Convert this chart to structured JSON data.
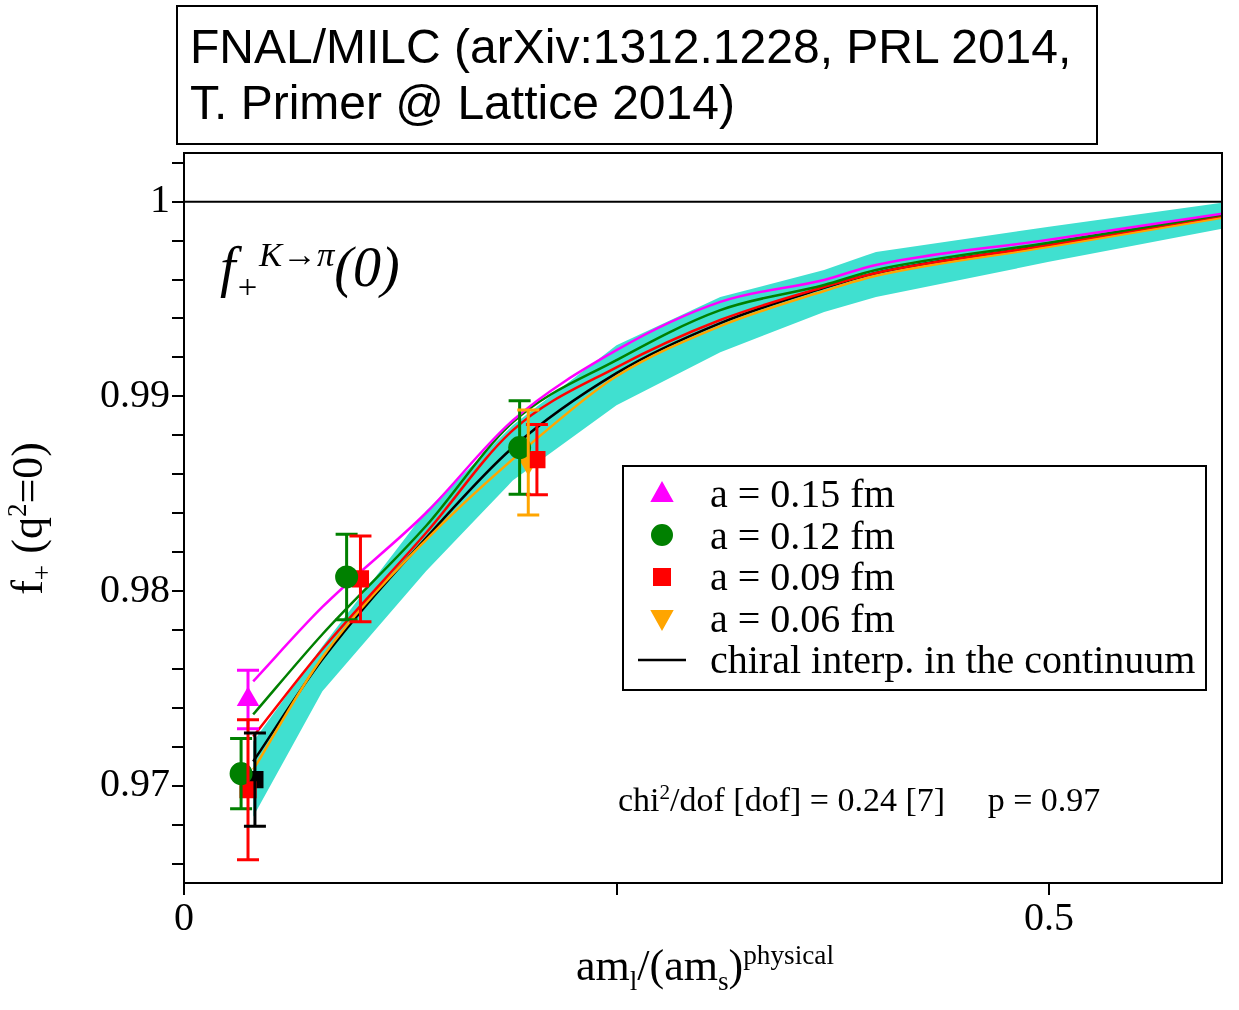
{
  "chart_data": {
    "type": "scatter",
    "title": "FNAL/MILC (arXiv:1312.1228, PRL 2014, T. Primer @ Lattice 2014)",
    "xlabel": "am$_{l}$/(am$_{s}$)$^{physical}$",
    "ylabel": "f$_{+}$ (q$^{2}$=0)",
    "annotations": [
      "f$_{+}$$^{K→π}$(0)",
      "chi$^{2}$/dof [dof] = 0.24 [7]     p = 0.97"
    ],
    "xlim": [
      0,
      0.6
    ],
    "xticks": [
      0,
      {
        "value": 0.25,
        "label": null
      },
      0.5
    ],
    "ylim": [
      0.965,
      1.0025
    ],
    "yticks": [
      {
        "value": 0.966,
        "label": null
      },
      {
        "value": 0.968,
        "label": null
      },
      0.97,
      {
        "value": 0.972,
        "label": null
      },
      {
        "value": 0.974,
        "label": null
      },
      {
        "value": 0.976,
        "label": null
      },
      {
        "value": 0.978,
        "label": null
      },
      0.98,
      {
        "value": 0.982,
        "label": null
      },
      {
        "value": 0.984,
        "label": null
      },
      {
        "value": 0.986,
        "label": null
      },
      {
        "value": 0.988,
        "label": null
      },
      0.99,
      {
        "value": 0.992,
        "label": null
      },
      {
        "value": 0.994,
        "label": null
      },
      {
        "value": 0.996,
        "label": null
      },
      {
        "value": 0.998,
        "label": null
      },
      1,
      {
        "value": 1.002,
        "label": null
      }
    ],
    "legend": "right",
    "ref_lines": [
      {
        "axis": "y",
        "value": 1,
        "color": "#000000"
      }
    ],
    "series": [
      {
        "name": "a = 0.15 fm",
        "color": "#ff00ff",
        "marker": "triangle",
        "x": [
          0.037
        ],
        "values": [
          0.97443
        ],
        "errors": [
          0.0015
        ]
      },
      {
        "name": "a = 0.12 fm",
        "color": "#008000",
        "marker": "circle",
        "x": [
          0.033,
          0.094,
          0.194
        ],
        "values": [
          0.97062,
          0.98072,
          0.98737
        ],
        "errors": [
          0.0018,
          0.0022,
          0.0024
        ]
      },
      {
        "name": "a = 0.09 fm",
        "color": "#ff0000",
        "marker": "square",
        "x": [
          0.037,
          0.102,
          0.204
        ],
        "values": [
          0.96979,
          0.98062,
          0.98675
        ],
        "errors": [
          0.0036,
          0.0022,
          0.0018
        ]
      },
      {
        "name": "a = 0.06 fm",
        "color": "#ffa500",
        "marker": "triangle-down",
        "x": [
          0.199
        ],
        "values": [
          0.9866
        ],
        "errors": [
          0.0027
        ]
      },
      {
        "type": "line",
        "color": "#ff00ff",
        "x": [
          0.04,
          0.08,
          0.14,
          0.19,
          0.25,
          0.31,
          0.37,
          0.4,
          0.5,
          0.6
        ],
        "values": [
          0.97536,
          0.97918,
          0.98402,
          0.98876,
          0.99237,
          0.99485,
          0.99598,
          0.99675,
          0.99804,
          0.99938
        ]
      },
      {
        "type": "line",
        "color": "#008000",
        "x": [
          0.04,
          0.08,
          0.14,
          0.19,
          0.25,
          0.31,
          0.37,
          0.4,
          0.5,
          0.6
        ],
        "values": [
          0.97366,
          0.97778,
          0.98335,
          0.98866,
          0.99186,
          0.99443,
          0.99572,
          0.99649,
          0.99789,
          0.99933
        ]
      },
      {
        "type": "line",
        "color": "#ff0000",
        "x": [
          0.04,
          0.08,
          0.14,
          0.19,
          0.25,
          0.31,
          0.37,
          0.4,
          0.5,
          0.6
        ],
        "values": [
          0.97253,
          0.97701,
          0.98299,
          0.98825,
          0.99149,
          0.99392,
          0.99562,
          0.99634,
          0.99778,
          0.99928
        ]
      },
      {
        "type": "line",
        "color": "#ffa500",
        "x": [
          0.04,
          0.08,
          0.14,
          0.22,
          0.25,
          0.31,
          0.37,
          0.4,
          0.5,
          0.6
        ],
        "values": [
          0.97082,
          0.9766,
          0.98263,
          0.98902,
          0.99103,
          0.99361,
          0.99541,
          0.99619,
          0.99768,
          0.99918
        ]
      },
      {
        "type": "line",
        "name": "chiral interp. in the continuum",
        "color": "#000000",
        "x": [
          0.04,
          0.08,
          0.14,
          0.19,
          0.25,
          0.31,
          0.37,
          0.4,
          0.5,
          0.6
        ],
        "values": [
          0.97124,
          0.97649,
          0.98273,
          0.98737,
          0.99119,
          0.99376,
          0.99557,
          0.99634,
          0.99778,
          0.99928
        ],
        "lower": [
          0.9684,
          0.97485,
          0.98103,
          0.98567,
          0.98954,
          0.99227,
          0.99433,
          0.9951,
          0.99691,
          0.99861
        ],
        "upper": [
          0.97227,
          0.97716,
          0.98412,
          0.98851,
          0.99263,
          0.9951,
          0.99649,
          0.99742,
          0.99871,
          0.99995
        ]
      },
      {
        "color": "#000000",
        "marker": "square",
        "x": [
          0.041
        ],
        "values": [
          0.97031
        ],
        "errors": [
          0.0024
        ]
      }
    ]
  }
}
